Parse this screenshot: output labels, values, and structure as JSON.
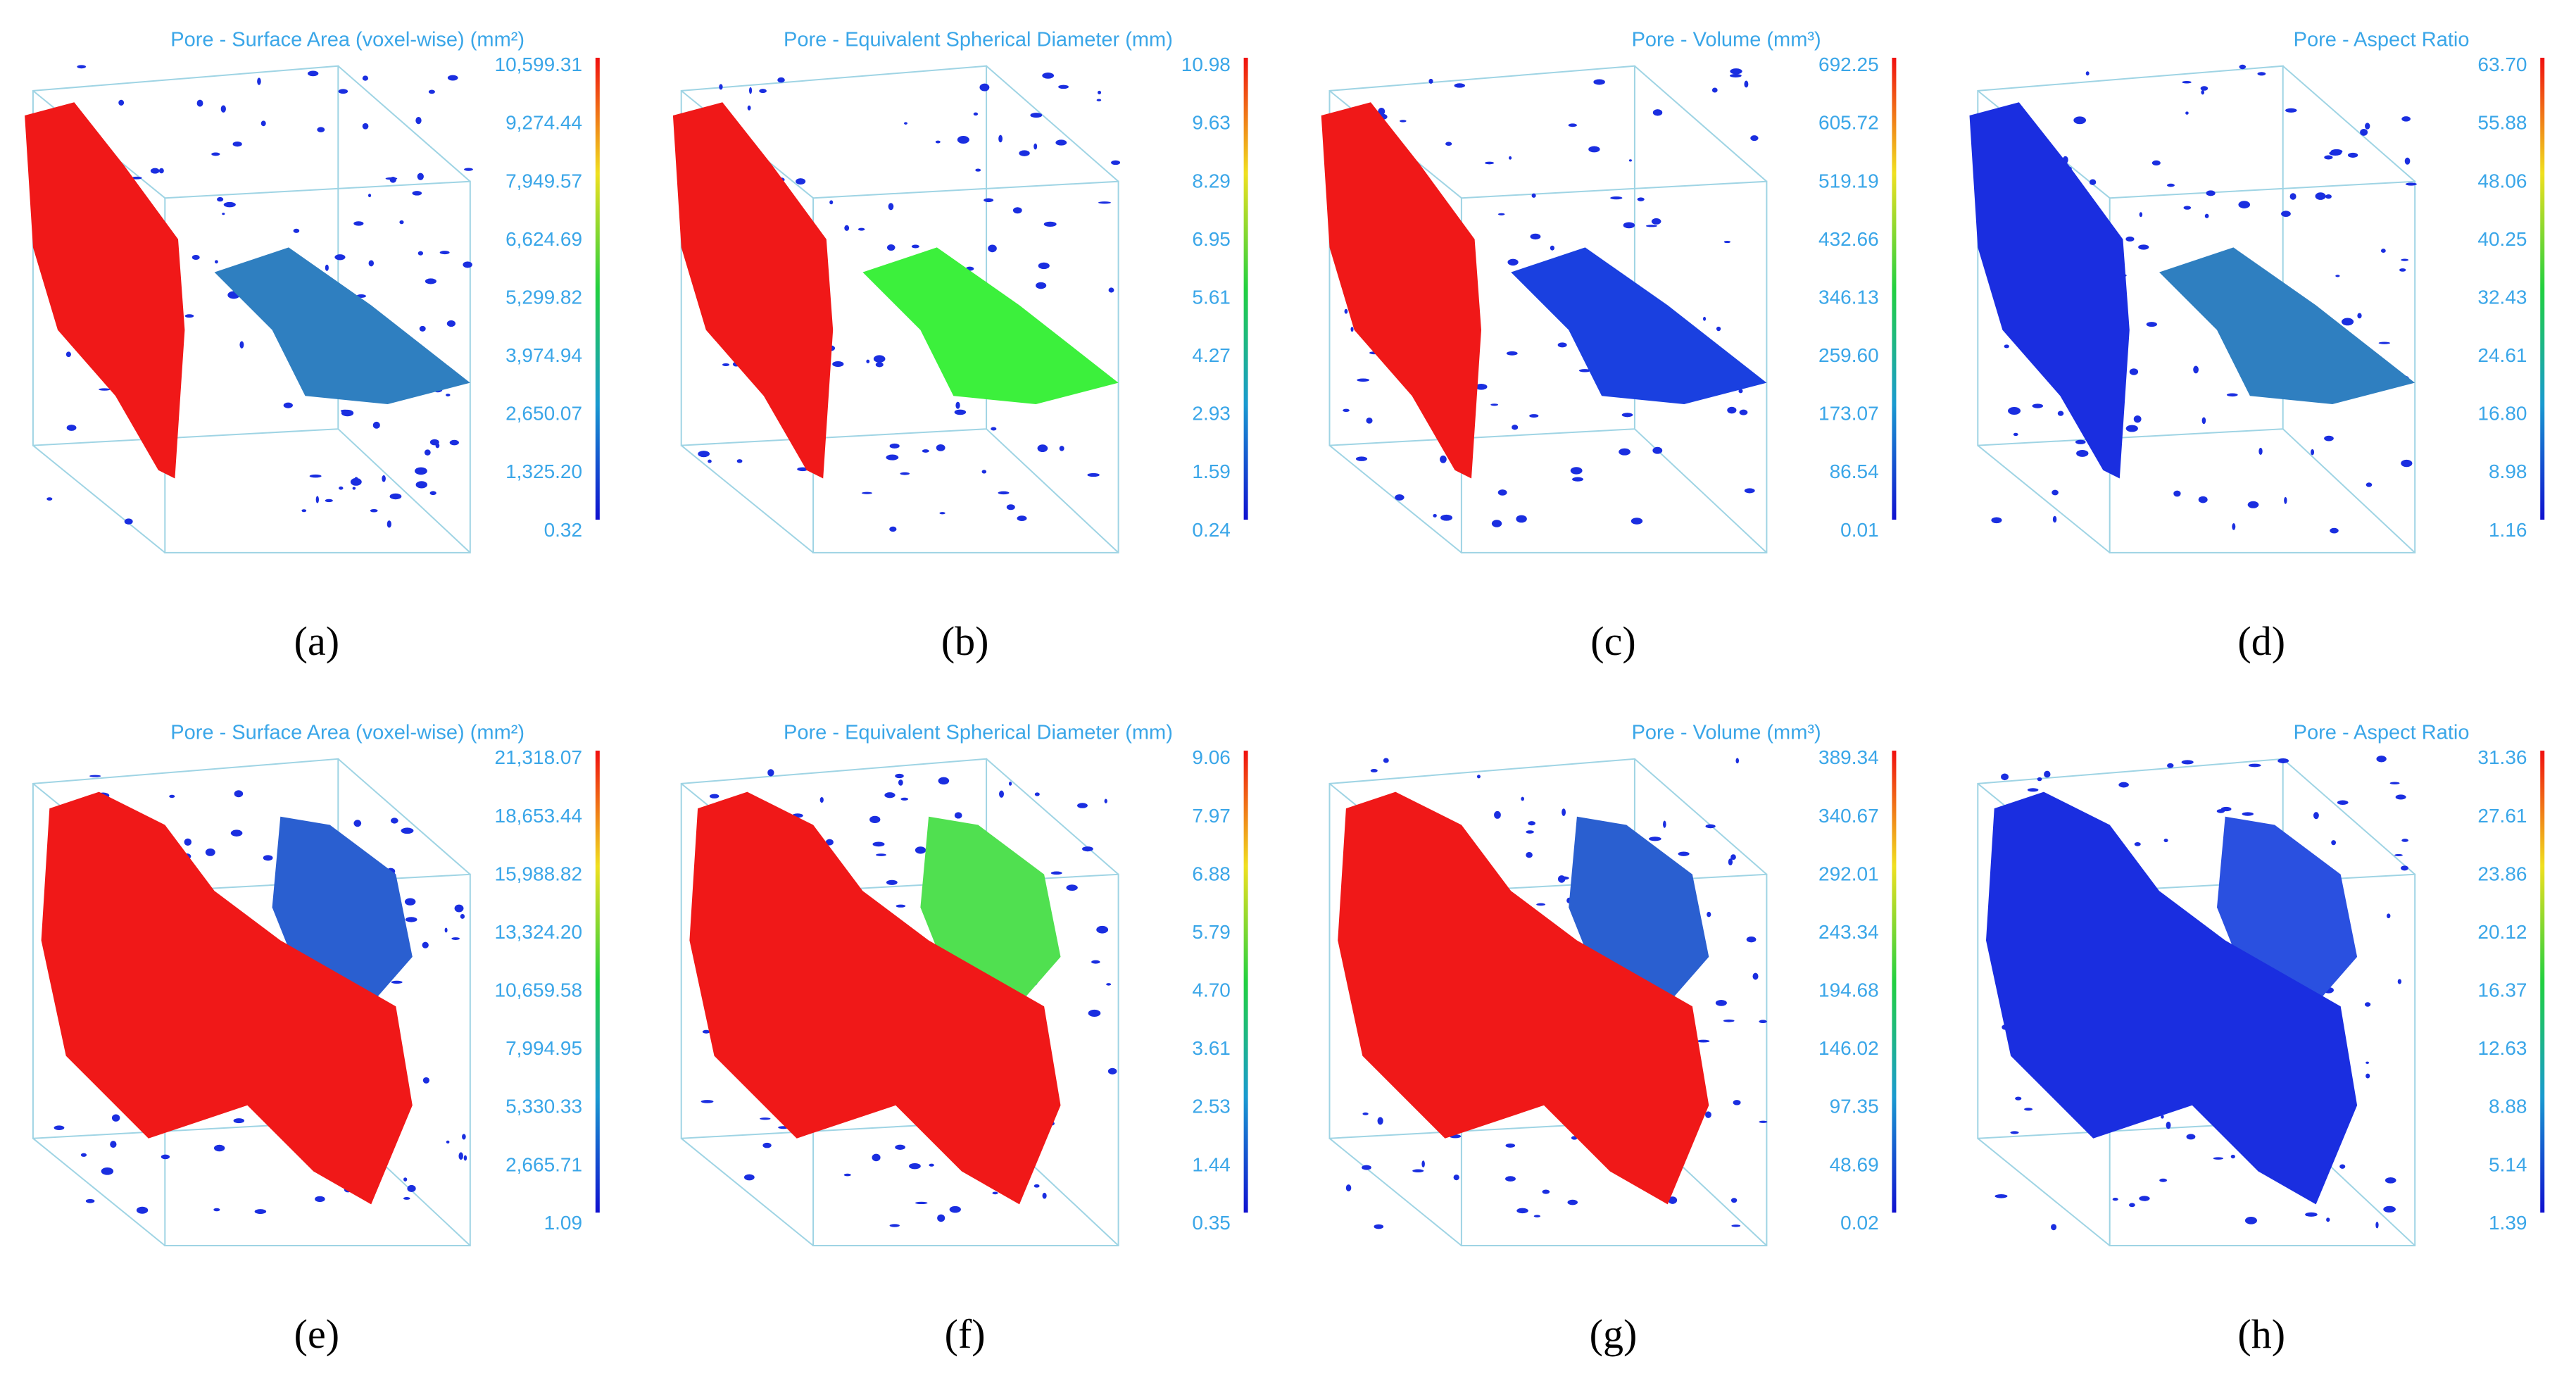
{
  "panels": [
    {
      "title": "Pore - Surface Area (voxel-wise) (mm²)",
      "ticks": [
        "10,599.31",
        "9,274.44",
        "7,949.57",
        "6,624.69",
        "5,299.82",
        "3,974.94",
        "2,650.07",
        "1,325.20",
        "0.32"
      ],
      "label": "(a)"
    },
    {
      "title": "Pore - Equivalent Spherical Diameter (mm)",
      "ticks": [
        "10.98",
        "9.63",
        "8.29",
        "6.95",
        "5.61",
        "4.27",
        "2.93",
        "1.59",
        "0.24"
      ],
      "label": "(b)"
    },
    {
      "title": "Pore - Volume (mm³)",
      "ticks": [
        "692.25",
        "605.72",
        "519.19",
        "432.66",
        "346.13",
        "259.60",
        "173.07",
        "86.54",
        "0.01"
      ],
      "label": "(c)"
    },
    {
      "title": "Pore - Aspect Ratio",
      "ticks": [
        "63.70",
        "55.88",
        "48.06",
        "40.25",
        "32.43",
        "24.61",
        "16.80",
        "8.98",
        "1.16"
      ],
      "label": "(d)"
    },
    {
      "title": "Pore - Surface Area (voxel-wise) (mm²)",
      "ticks": [
        "21,318.07",
        "18,653.44",
        "15,988.82",
        "13,324.20",
        "10,659.58",
        "7,994.95",
        "5,330.33",
        "2,665.71",
        "1.09"
      ],
      "label": "(e)"
    },
    {
      "title": "Pore - Equivalent Spherical Diameter (mm)",
      "ticks": [
        "9.06",
        "7.97",
        "6.88",
        "5.79",
        "4.70",
        "3.61",
        "2.53",
        "1.44",
        "0.35"
      ],
      "label": "(f)"
    },
    {
      "title": "Pore - Volume (mm³)",
      "ticks": [
        "389.34",
        "340.67",
        "292.01",
        "243.34",
        "194.68",
        "146.02",
        "97.35",
        "48.69",
        "0.02"
      ],
      "label": "(g)"
    },
    {
      "title": "Pore - Aspect Ratio",
      "ticks": [
        "31.36",
        "27.61",
        "23.86",
        "20.12",
        "16.37",
        "12.63",
        "8.88",
        "5.14",
        "1.39"
      ],
      "label": "(h)"
    }
  ]
}
